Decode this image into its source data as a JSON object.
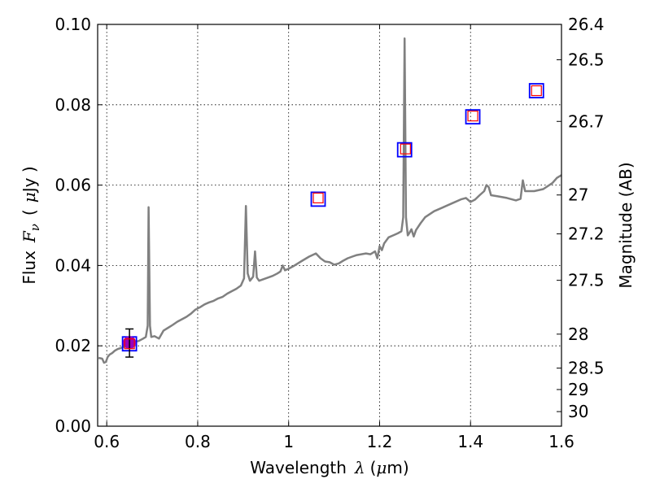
{
  "chart_data": {
    "type": "scatter",
    "xlabel": "Wavelength",
    "xlabel_symbol": "λ",
    "xlabel_unit_open": "(",
    "xlabel_unit_mu": "μ",
    "xlabel_unit_rest": "m)",
    "ylabel": "Flux",
    "ylabel_symbol": "F",
    "ylabel_sub": "ν",
    "ylabel_unit_open": "(",
    "ylabel_unit_mu": "μ",
    "ylabel_unit_rest": "Jy )",
    "y2label": "Magnitude (AB)",
    "xlim": [
      0.58,
      1.6
    ],
    "ylim": [
      0.0,
      0.1
    ],
    "grid": true,
    "x_ticks": [
      0.6,
      0.8,
      1.0,
      1.2,
      1.4,
      1.6
    ],
    "x_tick_labels": [
      "0.6",
      "0.8",
      "1",
      "1.2",
      "1.4",
      "1.6"
    ],
    "y_ticks": [
      0.0,
      0.02,
      0.04,
      0.06,
      0.08,
      0.1
    ],
    "y_tick_labels": [
      "0.00",
      "0.02",
      "0.04",
      "0.06",
      "0.08",
      "0.10"
    ],
    "y2_ticks": [
      26.4,
      26.5,
      26.7,
      27,
      27.2,
      27.5,
      28,
      28.5,
      29,
      30
    ],
    "y2_tick_labels": [
      "26.4",
      "26.5",
      "26.7",
      "27",
      "27.2",
      "27.5",
      "28",
      "28.5",
      "29",
      "30"
    ],
    "colors": {
      "spectrum": "#808080",
      "observed_box": "#0000ff",
      "model_box": "#ff0000",
      "detection": "#9900bb",
      "errorbar": "#000000",
      "grid": "#000000"
    },
    "spectrum": [
      [
        0.582,
        0.017
      ],
      [
        0.59,
        0.0168
      ],
      [
        0.594,
        0.0158
      ],
      [
        0.598,
        0.016
      ],
      [
        0.602,
        0.0172
      ],
      [
        0.606,
        0.0178
      ],
      [
        0.612,
        0.0182
      ],
      [
        0.618,
        0.0188
      ],
      [
        0.624,
        0.0192
      ],
      [
        0.632,
        0.0195
      ],
      [
        0.64,
        0.0198
      ],
      [
        0.65,
        0.0205
      ],
      [
        0.66,
        0.021
      ],
      [
        0.67,
        0.0212
      ],
      [
        0.68,
        0.0218
      ],
      [
        0.686,
        0.0222
      ],
      [
        0.69,
        0.025
      ],
      [
        0.692,
        0.0545
      ],
      [
        0.695,
        0.025
      ],
      [
        0.698,
        0.0222
      ],
      [
        0.705,
        0.0224
      ],
      [
        0.715,
        0.0218
      ],
      [
        0.725,
        0.0238
      ],
      [
        0.735,
        0.0245
      ],
      [
        0.745,
        0.0252
      ],
      [
        0.755,
        0.026
      ],
      [
        0.765,
        0.0266
      ],
      [
        0.775,
        0.0272
      ],
      [
        0.785,
        0.028
      ],
      [
        0.795,
        0.029
      ],
      [
        0.805,
        0.0296
      ],
      [
        0.815,
        0.0303
      ],
      [
        0.825,
        0.0308
      ],
      [
        0.835,
        0.0312
      ],
      [
        0.845,
        0.0318
      ],
      [
        0.855,
        0.0322
      ],
      [
        0.865,
        0.033
      ],
      [
        0.875,
        0.0336
      ],
      [
        0.885,
        0.0342
      ],
      [
        0.895,
        0.035
      ],
      [
        0.902,
        0.0368
      ],
      [
        0.906,
        0.0548
      ],
      [
        0.91,
        0.038
      ],
      [
        0.915,
        0.0362
      ],
      [
        0.922,
        0.0372
      ],
      [
        0.926,
        0.0435
      ],
      [
        0.93,
        0.037
      ],
      [
        0.935,
        0.0362
      ],
      [
        0.945,
        0.0366
      ],
      [
        0.955,
        0.037
      ],
      [
        0.965,
        0.0374
      ],
      [
        0.975,
        0.038
      ],
      [
        0.982,
        0.0385
      ],
      [
        0.987,
        0.04
      ],
      [
        0.992,
        0.0388
      ],
      [
        1.0,
        0.0392
      ],
      [
        1.01,
        0.0398
      ],
      [
        1.02,
        0.0405
      ],
      [
        1.03,
        0.0412
      ],
      [
        1.045,
        0.0422
      ],
      [
        1.06,
        0.043
      ],
      [
        1.07,
        0.0418
      ],
      [
        1.08,
        0.041
      ],
      [
        1.09,
        0.0408
      ],
      [
        1.1,
        0.0402
      ],
      [
        1.11,
        0.0405
      ],
      [
        1.12,
        0.0412
      ],
      [
        1.13,
        0.0418
      ],
      [
        1.14,
        0.0422
      ],
      [
        1.15,
        0.0426
      ],
      [
        1.16,
        0.0428
      ],
      [
        1.17,
        0.043
      ],
      [
        1.18,
        0.0428
      ],
      [
        1.19,
        0.0435
      ],
      [
        1.195,
        0.0418
      ],
      [
        1.2,
        0.0448
      ],
      [
        1.205,
        0.0438
      ],
      [
        1.21,
        0.0455
      ],
      [
        1.22,
        0.047
      ],
      [
        1.23,
        0.0475
      ],
      [
        1.24,
        0.048
      ],
      [
        1.248,
        0.0485
      ],
      [
        1.252,
        0.052
      ],
      [
        1.255,
        0.0965
      ],
      [
        1.258,
        0.052
      ],
      [
        1.262,
        0.0475
      ],
      [
        1.266,
        0.0482
      ],
      [
        1.27,
        0.049
      ],
      [
        1.275,
        0.0472
      ],
      [
        1.28,
        0.0488
      ],
      [
        1.29,
        0.0505
      ],
      [
        1.3,
        0.052
      ],
      [
        1.32,
        0.0535
      ],
      [
        1.34,
        0.0545
      ],
      [
        1.36,
        0.0555
      ],
      [
        1.38,
        0.0565
      ],
      [
        1.39,
        0.0568
      ],
      [
        1.4,
        0.0558
      ],
      [
        1.41,
        0.0564
      ],
      [
        1.42,
        0.0575
      ],
      [
        1.43,
        0.0585
      ],
      [
        1.435,
        0.06
      ],
      [
        1.44,
        0.0595
      ],
      [
        1.445,
        0.0575
      ],
      [
        1.46,
        0.0572
      ],
      [
        1.48,
        0.0568
      ],
      [
        1.5,
        0.0562
      ],
      [
        1.51,
        0.0566
      ],
      [
        1.515,
        0.0612
      ],
      [
        1.52,
        0.0585
      ],
      [
        1.54,
        0.0585
      ],
      [
        1.56,
        0.059
      ],
      [
        1.58,
        0.0605
      ],
      [
        1.59,
        0.0618
      ],
      [
        1.6,
        0.0625
      ]
    ],
    "observed_photometry": [
      {
        "x": 0.65,
        "y": 0.0205
      },
      {
        "x": 1.065,
        "y": 0.0565
      },
      {
        "x": 1.255,
        "y": 0.0688
      },
      {
        "x": 1.405,
        "y": 0.077
      },
      {
        "x": 1.545,
        "y": 0.0835
      }
    ],
    "model_photometry": [
      {
        "x": 0.65,
        "y": 0.0205
      },
      {
        "x": 1.065,
        "y": 0.0568
      },
      {
        "x": 1.257,
        "y": 0.069
      },
      {
        "x": 1.405,
        "y": 0.0772
      },
      {
        "x": 1.545,
        "y": 0.0835
      }
    ],
    "detection": {
      "x": 0.65,
      "y": 0.0208,
      "yerr_low": 0.0172,
      "yerr_high": 0.0242
    }
  }
}
